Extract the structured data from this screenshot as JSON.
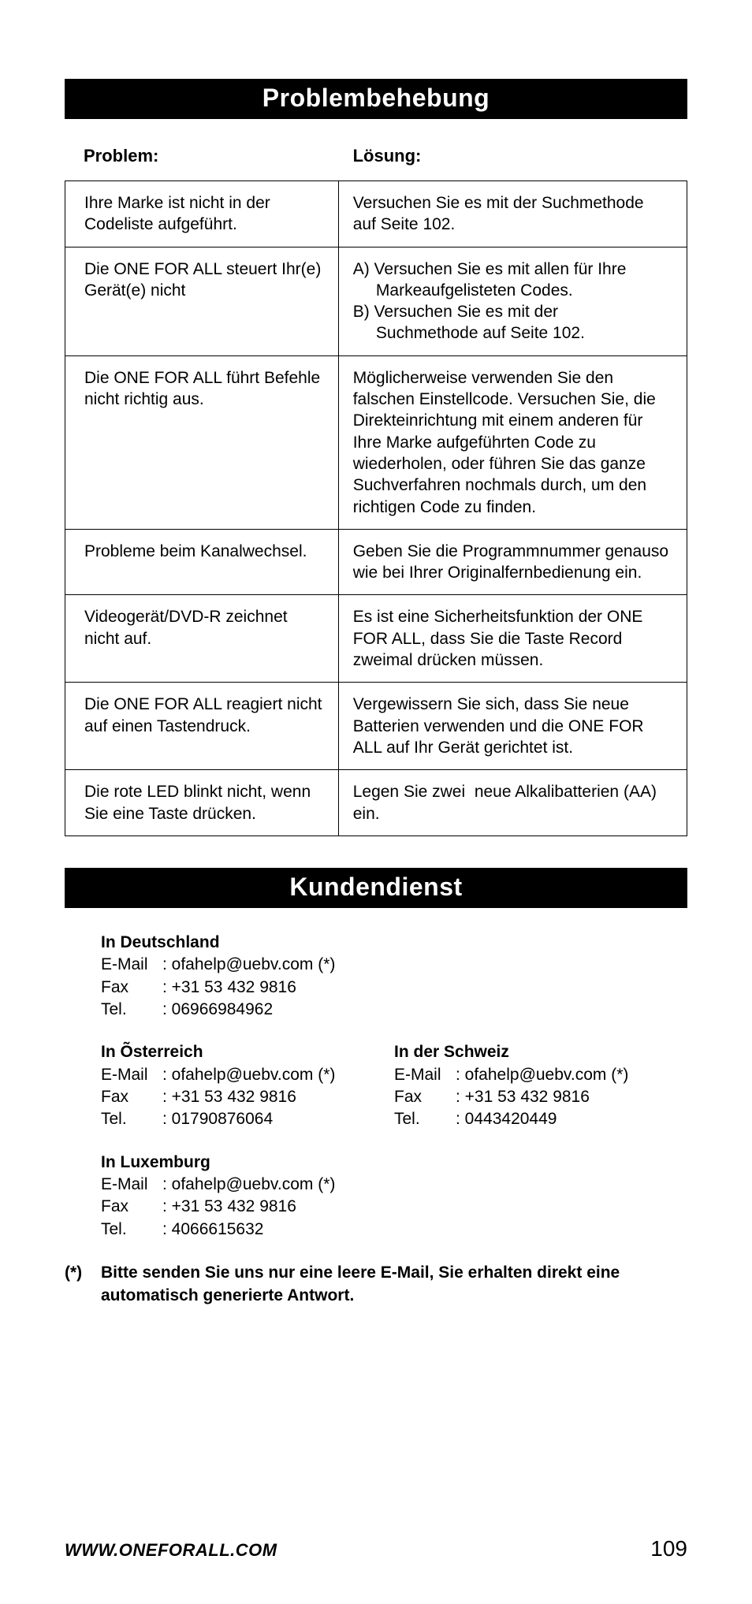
{
  "section1": {
    "title": "Problembehebung",
    "header_problem": "Problem:",
    "header_solution": "Lösung:",
    "header_bg": "#000000",
    "header_fg": "#ffffff",
    "border_color": "#000000",
    "rows": [
      {
        "problem": "Ihre Marke ist nicht in der Codeliste aufgeführt.",
        "solution": "Versuchen Sie es mit der Suchmethode auf Seite 102."
      },
      {
        "problem": "Die ONE FOR ALL steuert Ihr(e) Gerät(e) nicht",
        "solution": "A) Versuchen Sie es mit allen für Ihre\n     Markeaufgelisteten Codes.\nB) Versuchen Sie es mit der\n     Suchmethode auf Seite 102."
      },
      {
        "problem": "Die ONE FOR ALL führt Befehle nicht richtig aus.",
        "solution": "Möglicherweise verwenden Sie den falschen Einstellcode. Versuchen Sie, die Direkteinrichtung mit einem anderen für Ihre Marke aufgeführten Code zu wiederholen, oder führen Sie das ganze Suchverfahren nochmals durch, um den richtigen Code zu finden."
      },
      {
        "problem": "Probleme beim Kanalwechsel.",
        "solution": "Geben Sie die Programmnummer genauso wie bei Ihrer Originalfernbedienung ein."
      },
      {
        "problem": "Videogerät/DVD-R zeichnet nicht auf.",
        "solution": "Es ist eine Sicherheitsfunktion der ONE FOR ALL, dass Sie die Taste Record zweimal drücken müssen."
      },
      {
        "problem": "Die ONE FOR ALL reagiert nicht auf einen Tastendruck.",
        "solution": "Vergewissern Sie sich, dass Sie neue Batterien verwenden und die ONE FOR ALL auf Ihr Gerät gerichtet ist."
      },
      {
        "problem": "Die rote LED blinkt nicht, wenn Sie eine Taste drücken.",
        "solution": "Legen Sie zwei  neue Alkalibatterien (AA) ein."
      }
    ]
  },
  "section2": {
    "title": "Kundendienst",
    "contacts": [
      {
        "title": "In Deutschland",
        "email_label": "E-Mail",
        "email": ": ofahelp@uebv.com (*)",
        "fax_label": "Fax",
        "fax": ": +31 53 432 9816",
        "tel_label": "Tel.",
        "tel": ": 06966984962",
        "row": 0,
        "col": 0
      },
      {
        "title": "In Õsterreich",
        "email_label": "E-Mail",
        "email": ": ofahelp@uebv.com (*)",
        "fax_label": "Fax",
        "fax": ": +31 53 432 9816",
        "tel_label": "Tel.",
        "tel": ": 01790876064",
        "row": 1,
        "col": 0
      },
      {
        "title": "In der Schweiz",
        "email_label": "E-Mail",
        "email": ": ofahelp@uebv.com (*)",
        "fax_label": "Fax",
        "fax": ": +31 53 432 9816",
        "tel_label": "Tel.",
        "tel": ": 0443420449",
        "row": 1,
        "col": 1
      },
      {
        "title": "In Luxemburg",
        "email_label": "E-Mail",
        "email": ": ofahelp@uebv.com (*)",
        "fax_label": "Fax",
        "fax": ": +31 53 432 9816",
        "tel_label": "Tel.",
        "tel": ": 4066615632",
        "row": 2,
        "col": 0
      }
    ],
    "footnote_marker": "(*)",
    "footnote_text": "Bitte senden Sie uns nur eine leere E-Mail, Sie erhalten direkt eine automatisch generierte Antwort."
  },
  "footer": {
    "url": "WWW.ONEFORALL.COM",
    "page": "109"
  }
}
